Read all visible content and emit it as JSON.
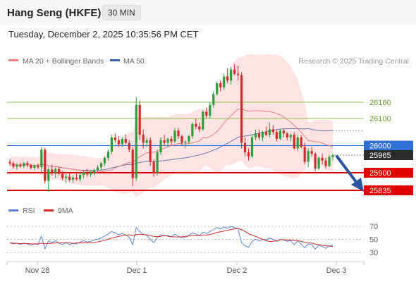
{
  "header": {
    "title": "Hang Seng (HKFE)",
    "timeframe": "30 MIN",
    "datetime": "Tuesday, December 2, 2025 10:35:56 PM CET"
  },
  "legend": {
    "ma20": "MA 20 + Bollinger Bands",
    "ma50": "MA 50",
    "copyright": "Research © 2025 Trading Central",
    "rsi": "RSI",
    "rsi_ma": "9MA"
  },
  "colors": {
    "ma20": "#f08080",
    "ma50": "#3b5ea8",
    "bands_fill": "#fde3e3",
    "bull": "#2e9e3a",
    "bear": "#d42a2a",
    "support": "#e00000",
    "pivot": "#2f6fd6",
    "resistance": "#8bc34a",
    "rsi": "#5b84d6",
    "rsi_ma": "#d42a2a"
  },
  "chart_data": {
    "type": "candlestick",
    "price_axis_range": [
      25790,
      26320
    ],
    "x_ticks": [
      "Nov 28",
      "Dec 1",
      "Dec 2",
      "Dec 3"
    ],
    "levels": [
      {
        "value": 26160,
        "label": "26160",
        "kind": "resistance"
      },
      {
        "value": 26100,
        "label": "26100",
        "kind": "resistance"
      },
      {
        "value": 26000,
        "label": "26000",
        "kind": "pivot"
      },
      {
        "value": 25965,
        "label": "25965",
        "kind": "last"
      },
      {
        "value": 25900,
        "label": "25900",
        "kind": "support"
      },
      {
        "value": 25835,
        "label": "25835",
        "kind": "support"
      }
    ],
    "ohlc": [
      [
        25940,
        25950,
        25925,
        25935
      ],
      [
        25935,
        25942,
        25915,
        25922
      ],
      [
        25922,
        25936,
        25910,
        25930
      ],
      [
        25930,
        25938,
        25918,
        25924
      ],
      [
        25924,
        25940,
        25918,
        25936
      ],
      [
        25936,
        25944,
        25920,
        25928
      ],
      [
        25928,
        25934,
        25912,
        25918
      ],
      [
        25918,
        25930,
        25910,
        25926
      ],
      [
        25926,
        25934,
        25914,
        25920
      ],
      [
        25920,
        25995,
        25900,
        25985
      ],
      [
        25985,
        25992,
        25860,
        25870
      ],
      [
        25870,
        25920,
        25830,
        25912
      ],
      [
        25912,
        25930,
        25890,
        25900
      ],
      [
        25900,
        25920,
        25880,
        25914
      ],
      [
        25914,
        25922,
        25890,
        25896
      ],
      [
        25896,
        25906,
        25872,
        25880
      ],
      [
        25880,
        25895,
        25860,
        25886
      ],
      [
        25886,
        25900,
        25868,
        25874
      ],
      [
        25874,
        25890,
        25862,
        25882
      ],
      [
        25882,
        25896,
        25870,
        25876
      ],
      [
        25876,
        25900,
        25866,
        25892
      ],
      [
        25892,
        25910,
        25880,
        25902
      ],
      [
        25902,
        25914,
        25886,
        25894
      ],
      [
        25894,
        25905,
        25884,
        25900
      ],
      [
        25900,
        25915,
        25890,
        25910
      ],
      [
        25910,
        25928,
        25898,
        25920
      ],
      [
        25920,
        25940,
        25908,
        25935
      ],
      [
        25935,
        25960,
        25925,
        25955
      ],
      [
        25955,
        25985,
        25945,
        25978
      ],
      [
        25978,
        26040,
        25968,
        26030
      ],
      [
        26030,
        26045,
        26010,
        26020
      ],
      [
        26020,
        26035,
        25995,
        26005
      ],
      [
        26005,
        26030,
        25995,
        26025
      ],
      [
        26025,
        26040,
        26005,
        26010
      ],
      [
        26010,
        26020,
        25975,
        25985
      ],
      [
        25985,
        25995,
        25850,
        25880
      ],
      [
        25880,
        26180,
        25870,
        26150
      ],
      [
        26150,
        26165,
        26020,
        26040
      ],
      [
        26040,
        26060,
        25990,
        26010
      ],
      [
        26010,
        26028,
        25995,
        26020
      ],
      [
        26020,
        26030,
        25925,
        25940
      ],
      [
        25940,
        25950,
        25885,
        25900
      ],
      [
        25900,
        25985,
        25890,
        25975
      ],
      [
        25975,
        26030,
        25965,
        26020
      ],
      [
        26020,
        26040,
        26000,
        26010
      ],
      [
        26010,
        26030,
        25995,
        26025
      ],
      [
        26025,
        26035,
        26000,
        26015
      ],
      [
        26015,
        26065,
        26010,
        26055
      ],
      [
        26055,
        26065,
        26025,
        26035
      ],
      [
        26035,
        26040,
        26000,
        26010
      ],
      [
        26010,
        26020,
        25990,
        26015
      ],
      [
        26015,
        26040,
        26005,
        26035
      ],
      [
        26035,
        26085,
        26025,
        26080
      ],
      [
        26080,
        26100,
        26060,
        26070
      ],
      [
        26070,
        26085,
        26050,
        26060
      ],
      [
        26060,
        26130,
        26055,
        26125
      ],
      [
        26125,
        26140,
        26100,
        26110
      ],
      [
        26110,
        26160,
        26100,
        26150
      ],
      [
        26150,
        26200,
        26140,
        26190
      ],
      [
        26190,
        26235,
        26185,
        26230
      ],
      [
        26230,
        26240,
        26200,
        26215
      ],
      [
        26215,
        26265,
        26205,
        26255
      ],
      [
        26255,
        26285,
        26230,
        26240
      ],
      [
        26240,
        26290,
        26225,
        26280
      ],
      [
        26280,
        26300,
        26260,
        26265
      ],
      [
        26265,
        26295,
        26240,
        26260
      ],
      [
        26260,
        26270,
        25990,
        26010
      ],
      [
        26010,
        26030,
        25960,
        25975
      ],
      [
        25975,
        25990,
        25945,
        25960
      ],
      [
        25960,
        26040,
        25955,
        26030
      ],
      [
        26030,
        26060,
        26020,
        26045
      ],
      [
        26045,
        26060,
        26020,
        26030
      ],
      [
        26030,
        26055,
        26015,
        26050
      ],
      [
        26050,
        26070,
        26035,
        26040
      ],
      [
        26040,
        26085,
        26030,
        26060
      ],
      [
        26060,
        26075,
        26040,
        26050
      ],
      [
        26050,
        26060,
        26015,
        26025
      ],
      [
        26025,
        26060,
        26020,
        26055
      ],
      [
        26055,
        26060,
        26030,
        26045
      ],
      [
        26045,
        26050,
        26020,
        26030
      ],
      [
        26030,
        26045,
        26015,
        26040
      ],
      [
        26040,
        26050,
        25985,
        25990
      ],
      [
        25990,
        26040,
        25980,
        26030
      ],
      [
        26030,
        26038,
        25990,
        25995
      ],
      [
        25995,
        26010,
        25930,
        25940
      ],
      [
        25940,
        25990,
        25920,
        25980
      ],
      [
        25980,
        25995,
        25960,
        25970
      ],
      [
        25970,
        25975,
        25905,
        25915
      ],
      [
        25915,
        25960,
        25910,
        25955
      ],
      [
        25955,
        25970,
        25930,
        25945
      ],
      [
        25945,
        25955,
        25915,
        25925
      ],
      [
        25925,
        25965,
        25920,
        25958
      ],
      [
        25958,
        25970,
        25945,
        25965
      ]
    ],
    "rsi_axis_ticks": [
      70,
      50,
      30
    ],
    "rsi_range": [
      20,
      80
    ],
    "rsi": [
      45,
      43,
      44,
      42,
      44,
      43,
      41,
      43,
      42,
      55,
      35,
      48,
      45,
      48,
      44,
      42,
      45,
      42,
      44,
      43,
      46,
      48,
      46,
      47,
      49,
      50,
      52,
      55,
      58,
      62,
      60,
      57,
      59,
      57,
      53,
      42,
      68,
      62,
      58,
      56,
      50,
      45,
      53,
      57,
      55,
      56,
      54,
      58,
      55,
      52,
      53,
      56,
      60,
      58,
      56,
      61,
      59,
      62,
      65,
      68,
      66,
      69,
      67,
      70,
      68,
      66,
      45,
      40,
      38,
      47,
      50,
      48,
      50,
      49,
      52,
      50,
      47,
      50,
      49,
      47,
      48,
      42,
      47,
      43,
      37,
      43,
      42,
      35,
      41,
      39,
      36,
      40,
      41
    ]
  }
}
